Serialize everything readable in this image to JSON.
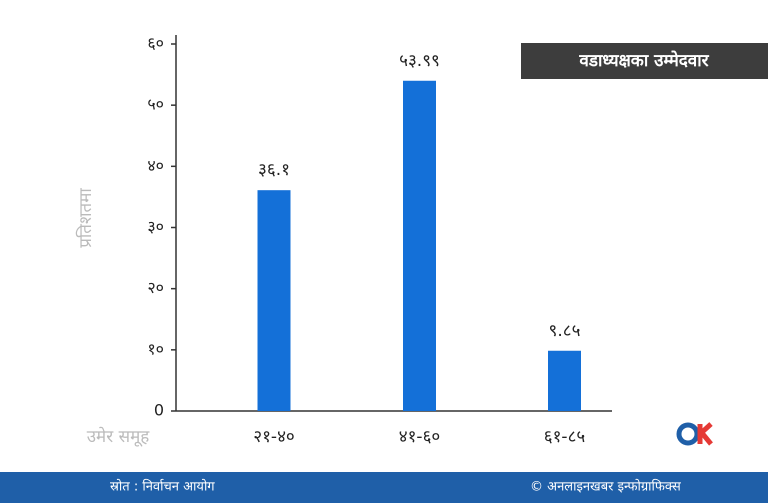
{
  "chart_data": {
    "type": "bar",
    "title": "वडाध्यक्षका उम्मेदवार",
    "x_label": "उमेर समूह",
    "y_label": "प्रतिशतमा",
    "categories": [
      "२१-४०",
      "४१-६०",
      "६१-८५"
    ],
    "values": [
      36.1,
      53.99,
      9.85
    ],
    "value_labels": [
      "३६.१",
      "५३.९९",
      "९.८५"
    ],
    "color": "#1470d8",
    "ylim": [
      0,
      60
    ],
    "yticks": [
      {
        "value": 0,
        "label": "0"
      },
      {
        "value": 10,
        "label": "१०"
      },
      {
        "value": 20,
        "label": "२०"
      },
      {
        "value": 30,
        "label": "३०"
      },
      {
        "value": 40,
        "label": "४०"
      },
      {
        "value": 50,
        "label": "५०"
      },
      {
        "value": 60,
        "label": "६०"
      }
    ]
  },
  "footer": {
    "source": "स्रोत : निर्वाचन आयोग",
    "credit": "© अनलाइनखबर इन्फोग्राफिक्स"
  }
}
